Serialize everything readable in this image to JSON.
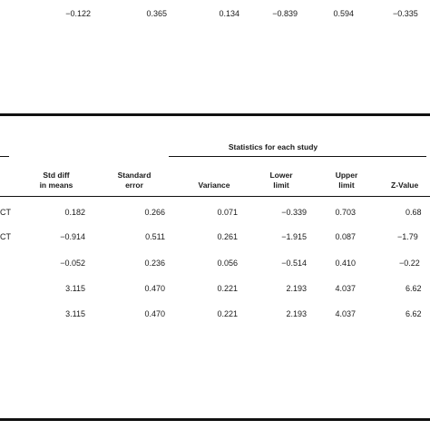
{
  "top_row": [
    "−0.122",
    "0.365",
    "0.134",
    "−0.839",
    "0.594",
    "−0.335"
  ],
  "section_title": "Statistics for each study",
  "headers": {
    "std_diff": [
      "Std diff",
      "in means"
    ],
    "std_error": [
      "Standard",
      "error"
    ],
    "variance": "Variance",
    "lower": [
      "Lower",
      "limit"
    ],
    "upper": [
      "Upper",
      "limit"
    ],
    "zvalue": "Z-Value"
  },
  "row_labels": [
    "CT",
    "CT"
  ],
  "rows": [
    [
      "0.182",
      "0.266",
      "0.071",
      "−0.339",
      "0.703",
      "0.68"
    ],
    [
      "−0.914",
      "0.511",
      "0.261",
      "−1.915",
      "0.087",
      "−1.79"
    ],
    [
      "−0.052",
      "0.236",
      "0.056",
      "−0.514",
      "0.410",
      "−0.22"
    ],
    [
      "3.115",
      "0.470",
      "0.221",
      "2.193",
      "4.037",
      "6.62"
    ],
    [
      "3.115",
      "0.470",
      "0.221",
      "2.193",
      "4.037",
      "6.62"
    ]
  ]
}
